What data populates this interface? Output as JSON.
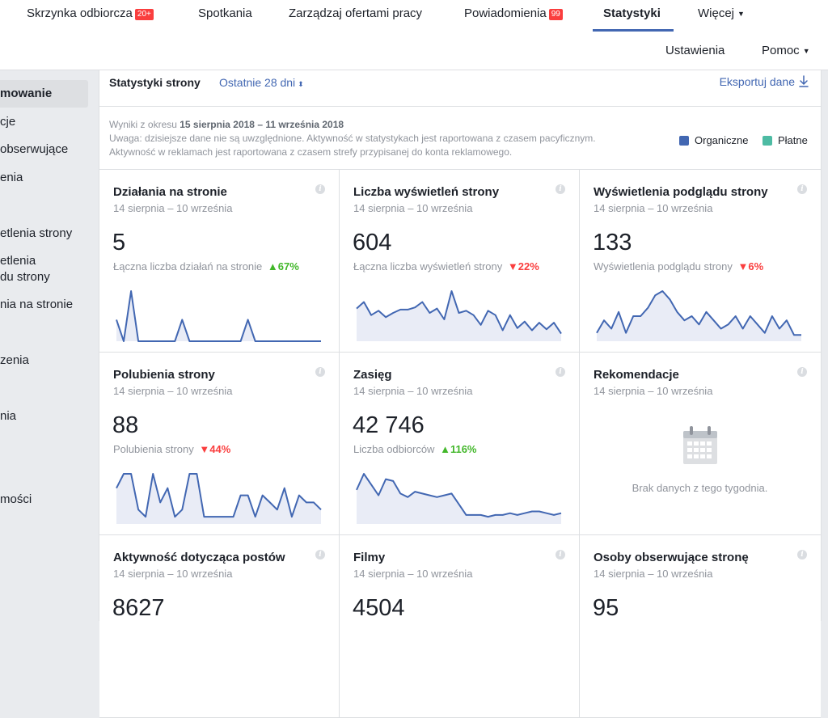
{
  "topnav": {
    "tabs": [
      {
        "label": "Skrzynka odbiorcza",
        "badge": "20+"
      },
      {
        "label": "Spotkania"
      },
      {
        "label": "Zarządzaj ofertami pracy"
      },
      {
        "label": "Powiadomienia",
        "badge": "99"
      },
      {
        "label": "Statystyki",
        "active": true
      },
      {
        "label": "Więcej"
      }
    ],
    "sub": {
      "settings": "Ustawienia",
      "help": "Pomoc"
    }
  },
  "sidebar": {
    "items": [
      {
        "label": "mowanie",
        "active": true
      },
      {
        "label": "cje"
      },
      {
        "label": "obserwujące"
      },
      {
        "label": "enia"
      },
      {
        "label": "etlenia strony"
      },
      {
        "label": "etlenia"
      },
      {
        "label": "du strony"
      },
      {
        "label": "nia na stronie"
      },
      {
        "label": "zenia"
      },
      {
        "label": "nia"
      },
      {
        "label": "mości"
      }
    ]
  },
  "panel": {
    "title": "Statystyki strony",
    "period": "Ostatnie 28 dni",
    "export": "Eksportuj dane",
    "notice": {
      "prefix": "Wyniki z okresu ",
      "range": "15 sierpnia 2018 – 11 września 2018",
      "line2": "Uwaga: dzisiejsze dane nie są uwzględnione. Aktywność w statystykach jest raportowana z czasem pacyficznym.",
      "line3": "Aktywność w reklamach jest raportowana z czasem strefy przypisanej do konta reklamowego."
    },
    "legend": {
      "organic": {
        "label": "Organiczne",
        "color": "#4267b2"
      },
      "paid": {
        "label": "Płatne",
        "color": "#4dbba3"
      }
    }
  },
  "cards": [
    {
      "title": "Działania na stronie",
      "date": "14 sierpnia – 10 września",
      "value": "5",
      "sub": "Łączna liczba działań na stronie",
      "delta": "67%",
      "trend": "up",
      "series": [
        3,
        0,
        7,
        0,
        0,
        0,
        0,
        0,
        0,
        3,
        0,
        0,
        0,
        0,
        0,
        0,
        0,
        0,
        3,
        0,
        0,
        0,
        0,
        0,
        0,
        0,
        0,
        0,
        0
      ]
    },
    {
      "title": "Liczba wyświetleń strony",
      "date": "14 sierpnia – 10 września",
      "value": "604",
      "sub": "Łączna liczba wyświetleń strony",
      "delta": "22%",
      "trend": "down",
      "series": [
        30,
        36,
        24,
        28,
        22,
        26,
        29,
        29,
        31,
        36,
        26,
        30,
        20,
        46,
        26,
        28,
        24,
        15,
        28,
        24,
        10,
        24,
        12,
        18,
        10,
        17,
        11,
        17,
        7
      ]
    },
    {
      "title": "Wyświetlenia podglądu strony",
      "date": "14 sierpnia – 10 września",
      "value": "133",
      "sub": "Wyświetlenia podglądu strony",
      "delta": "6%",
      "trend": "down",
      "series": [
        4,
        10,
        6,
        14,
        4,
        12,
        12,
        16,
        22,
        24,
        20,
        14,
        10,
        12,
        8,
        14,
        10,
        6,
        8,
        12,
        6,
        12,
        8,
        4,
        12,
        6,
        10,
        3,
        3
      ]
    },
    {
      "title": "Polubienia strony",
      "date": "14 sierpnia – 10 września",
      "value": "88",
      "sub": "Polubienia strony",
      "delta": "44%",
      "trend": "down",
      "series": [
        10,
        14,
        14,
        4,
        2,
        14,
        6,
        10,
        2,
        4,
        14,
        14,
        2,
        2,
        2,
        2,
        2,
        8,
        8,
        2,
        8,
        6,
        4,
        10,
        2,
        8,
        6,
        6,
        4
      ]
    },
    {
      "title": "Zasięg",
      "date": "14 sierpnia – 10 września",
      "value": "42 746",
      "sub": "Liczba odbiorców",
      "delta": "116%",
      "trend": "up",
      "series": [
        1900,
        2800,
        2200,
        1600,
        2500,
        2400,
        1700,
        1500,
        1800,
        1700,
        1600,
        1500,
        1600,
        1700,
        1100,
        500,
        500,
        500,
        400,
        500,
        500,
        600,
        500,
        600,
        700,
        700,
        600,
        500,
        600
      ]
    },
    {
      "title": "Rekomendacje",
      "date": "14 sierpnia – 10 września",
      "empty": "Brak danych z tego tygodnia."
    },
    {
      "title": "Aktywność dotycząca postów",
      "date": "14 sierpnia – 10 września",
      "value": "8627"
    },
    {
      "title": "Filmy",
      "date": "14 sierpnia – 10 września",
      "value": "4504"
    },
    {
      "title": "Osoby obserwujące stronę",
      "date": "14 sierpnia – 10 września",
      "value": "95"
    }
  ]
}
